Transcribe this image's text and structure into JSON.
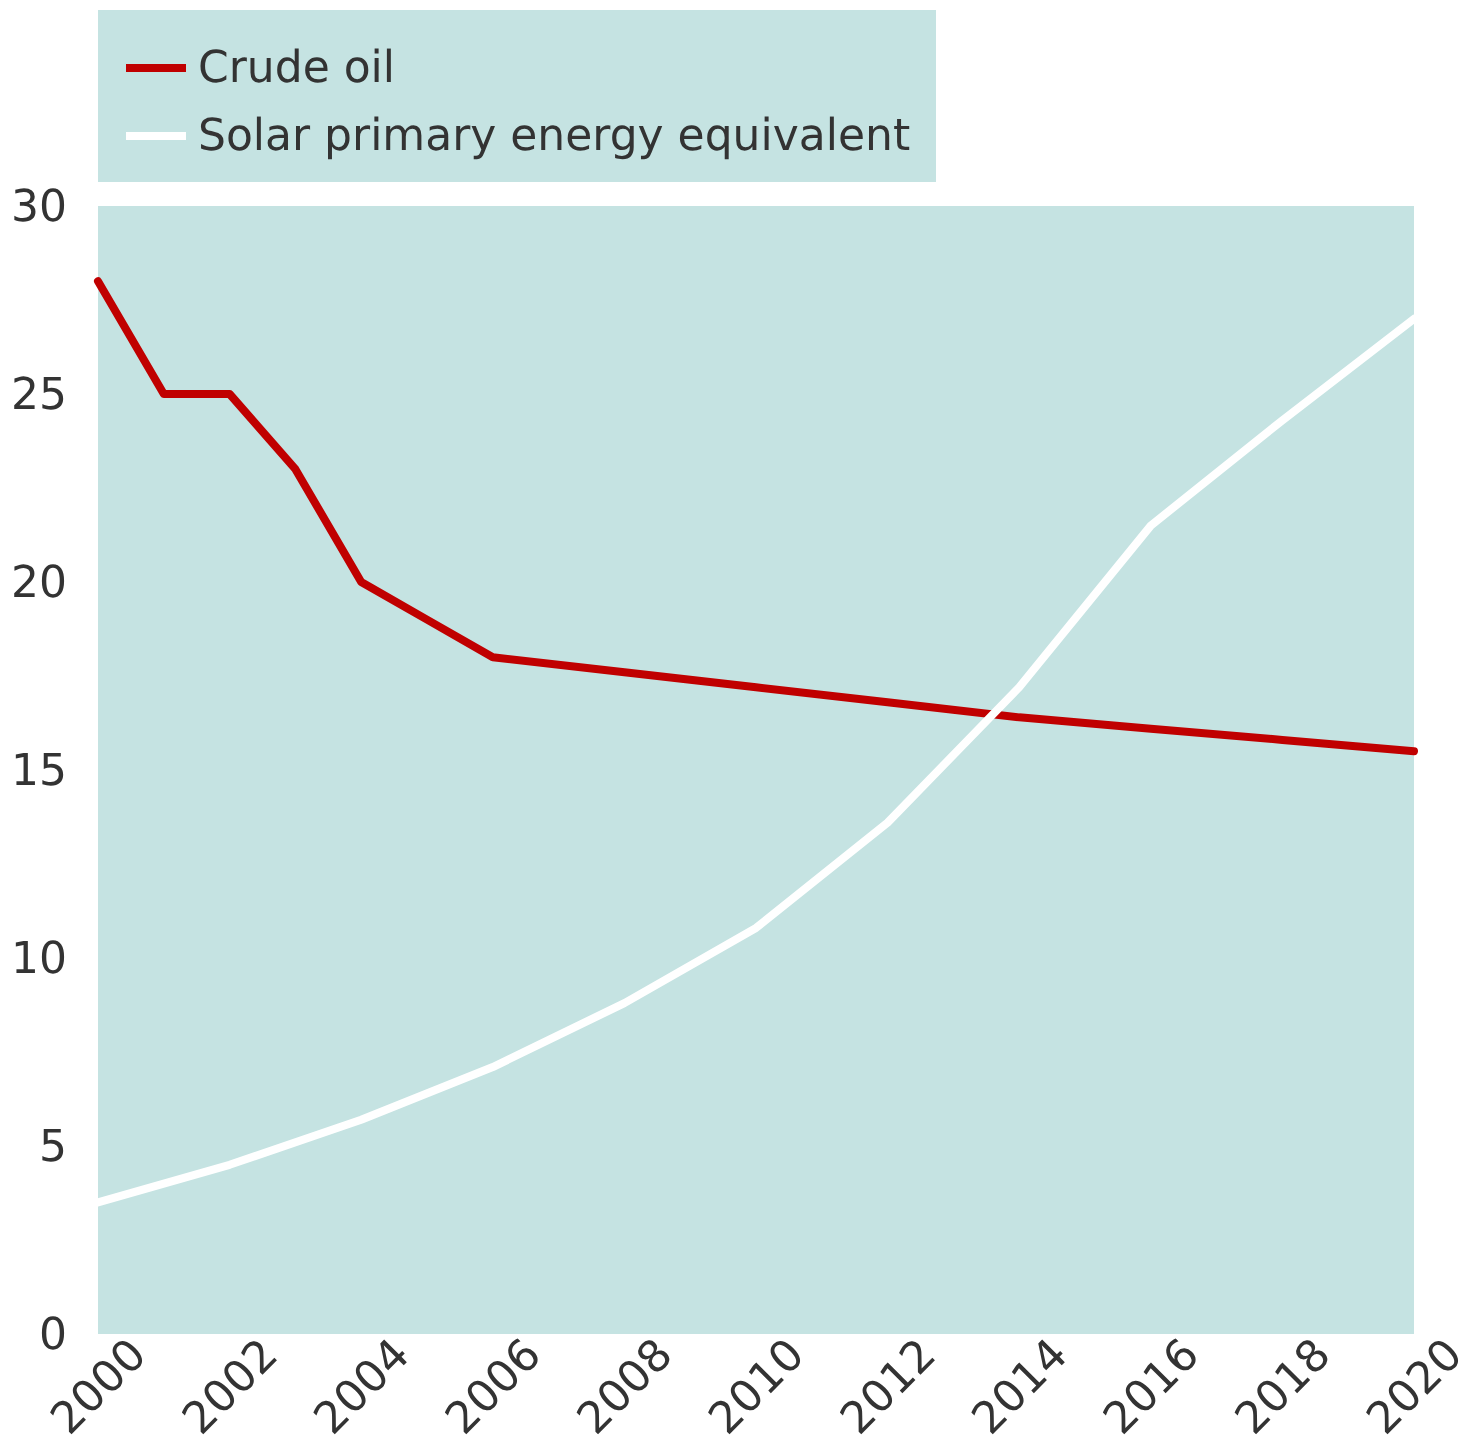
{
  "chart_data": {
    "type": "line",
    "series": [
      {
        "name": "Crude oil",
        "color": "#c00000",
        "x": [
          2000,
          2001,
          2002,
          2003,
          2004,
          2005,
          2006,
          2008,
          2010,
          2012,
          2014,
          2016,
          2018,
          2020
        ],
        "values": [
          28,
          25,
          25,
          23,
          20,
          19,
          18,
          17.6,
          17.2,
          16.8,
          16.4,
          16.1,
          15.8,
          15.5
        ]
      },
      {
        "name": "Solar primary energy equivalent",
        "color": "#ffffff",
        "x": [
          2000,
          2002,
          2004,
          2006,
          2008,
          2010,
          2012,
          2014,
          2016,
          2018,
          2020
        ],
        "values": [
          3.5,
          4.5,
          5.7,
          7.1,
          8.8,
          10.8,
          13.6,
          17.2,
          21.5,
          24.3,
          27
        ]
      }
    ],
    "xlim": [
      2000,
      2020
    ],
    "xticks": [
      2000,
      2002,
      2004,
      2006,
      2008,
      2010,
      2012,
      2014,
      2016,
      2018,
      2020
    ],
    "ylim": [
      0,
      30
    ],
    "yticks": [
      0,
      5,
      10,
      15,
      20,
      25,
      30
    ],
    "grid": false,
    "legend": "top",
    "marker": "none",
    "line_style": "solid"
  }
}
